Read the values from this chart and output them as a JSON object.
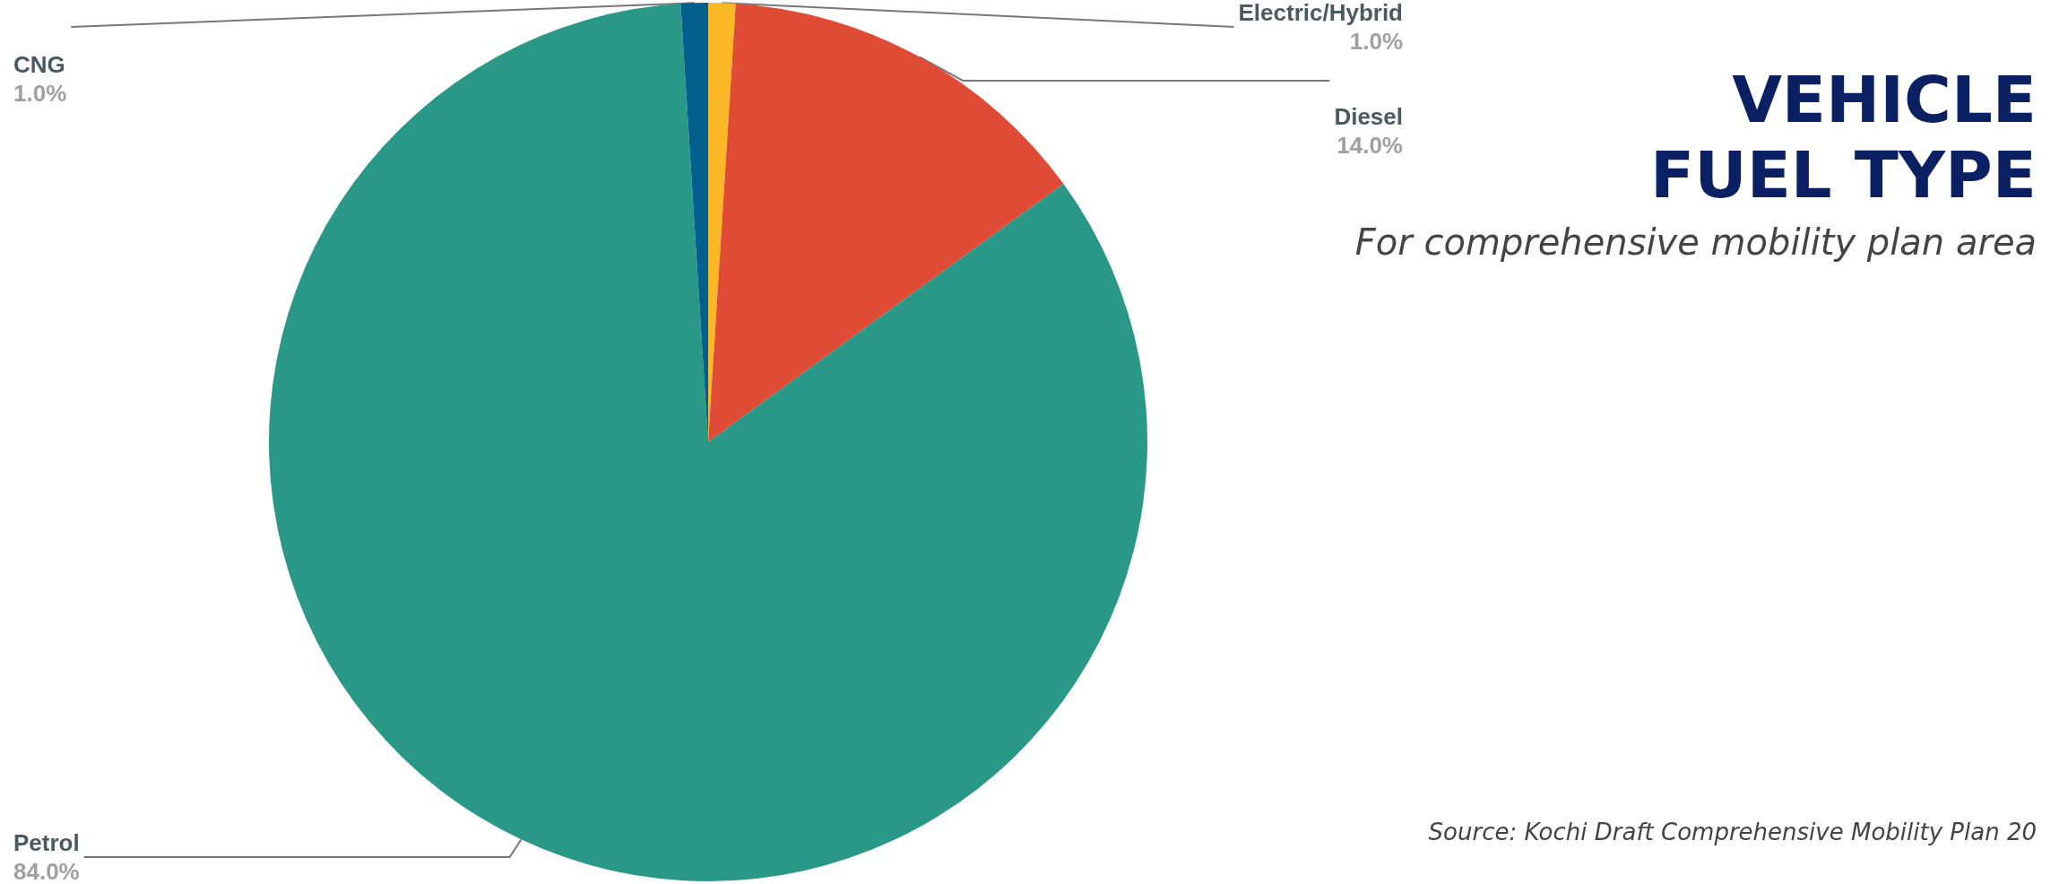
{
  "chart_data": {
    "type": "pie",
    "title": "VEHICLE\nFUEL TYPE",
    "subtitle": "For comprehensive mobility plan area",
    "annotations": [
      "Source: Kochi Draft Comprehensive Mobility Plan 20"
    ],
    "categories": [
      "Electric/Hybrid",
      "Diesel",
      "Petrol",
      "CNG"
    ],
    "values": [
      1,
      14,
      84,
      1
    ],
    "value_labels": [
      "1.0%",
      "14.0%",
      "84.0%",
      "1.0%"
    ],
    "colors": [
      "#fbb826",
      "#e04b36",
      "#2a9887",
      "#025f8e"
    ],
    "legend": false
  }
}
